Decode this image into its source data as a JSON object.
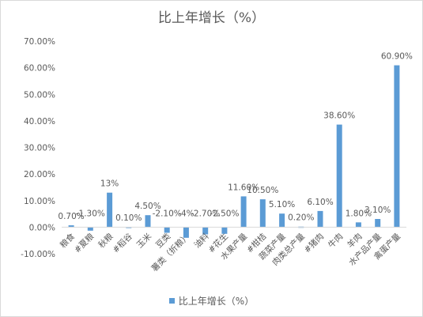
{
  "chart_data": {
    "type": "bar",
    "title": "比上年增长（%）",
    "categories": [
      "粮食",
      "#夏粮",
      "秋粮",
      "#稻谷",
      "玉米",
      "豆类",
      "薯类（折粮）",
      "油料",
      "#花生",
      "水果产量",
      "#柑桔",
      "蔬菜产量",
      "肉类总产量",
      "#猪肉",
      "牛肉",
      "羊肉",
      "水产品产量",
      "禽蛋产量"
    ],
    "series": [
      {
        "name": "比上年增长（%）",
        "values": [
          0.7,
          -1.3,
          13,
          0.1,
          4.5,
          -2.1,
          -4,
          -2.7,
          -2.5,
          11.6,
          10.5,
          5.1,
          0.2,
          6.1,
          38.6,
          1.8,
          3.1,
          60.9
        ],
        "data_labels": [
          "0.70%",
          "-1.30%",
          "13%",
          "0.10%",
          "4.50%",
          "-2.10%",
          "-4%",
          "-2.70%",
          "-2.50%",
          "11.60%",
          "10.50%",
          "5.10%",
          "0.20%",
          "6.10%",
          "38.60%",
          "1.80%",
          "3.10%",
          "60.90%"
        ]
      }
    ],
    "ylim": [
      -10,
      70
    ],
    "yticks": [
      -10,
      0,
      10,
      20,
      30,
      40,
      50,
      60,
      70
    ],
    "ytick_labels": [
      "-10.00%",
      "0.00%",
      "10.00%",
      "20.00%",
      "30.00%",
      "40.00%",
      "50.00%",
      "60.00%",
      "70.00%"
    ],
    "grid": false,
    "legend_position": "bottom",
    "colors": {
      "bar": "#5b9bd5",
      "text": "#595959",
      "axis": "#d9d9d9"
    }
  }
}
